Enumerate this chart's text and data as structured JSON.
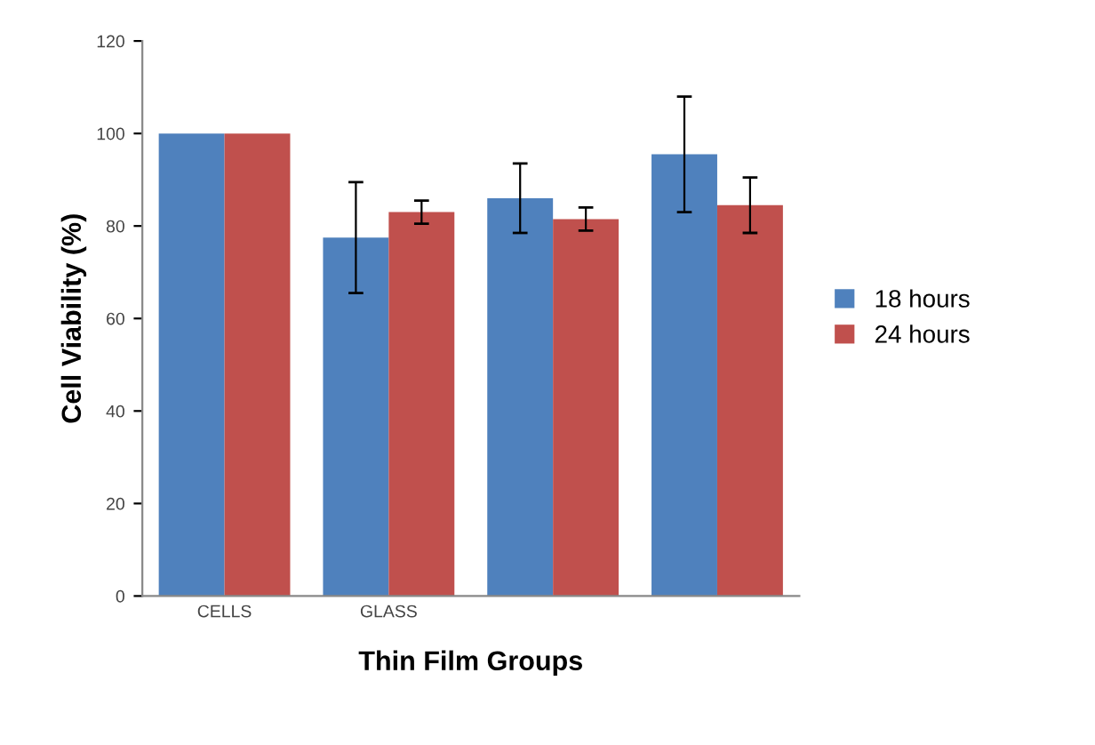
{
  "chart_data": {
    "type": "bar",
    "xlabel": "Thin Film Groups",
    "ylabel": "Cell Viability (%)",
    "categories": [
      "CELLS",
      "GLASS",
      null,
      null
    ],
    "series": [
      {
        "name": "18 hours",
        "color": "#4f81bd",
        "values": [
          100,
          77.5,
          86,
          95.5
        ],
        "errors": [
          null,
          12,
          7.5,
          12.5
        ]
      },
      {
        "name": "24 hours",
        "color": "#c0504d",
        "values": [
          100,
          83,
          81.5,
          84.5
        ],
        "errors": [
          null,
          2.5,
          2.5,
          6
        ]
      }
    ],
    "ylim": [
      0,
      120
    ],
    "yticks": [
      0,
      20,
      40,
      60,
      80,
      100,
      120
    ],
    "grid": false,
    "legend": "right"
  }
}
